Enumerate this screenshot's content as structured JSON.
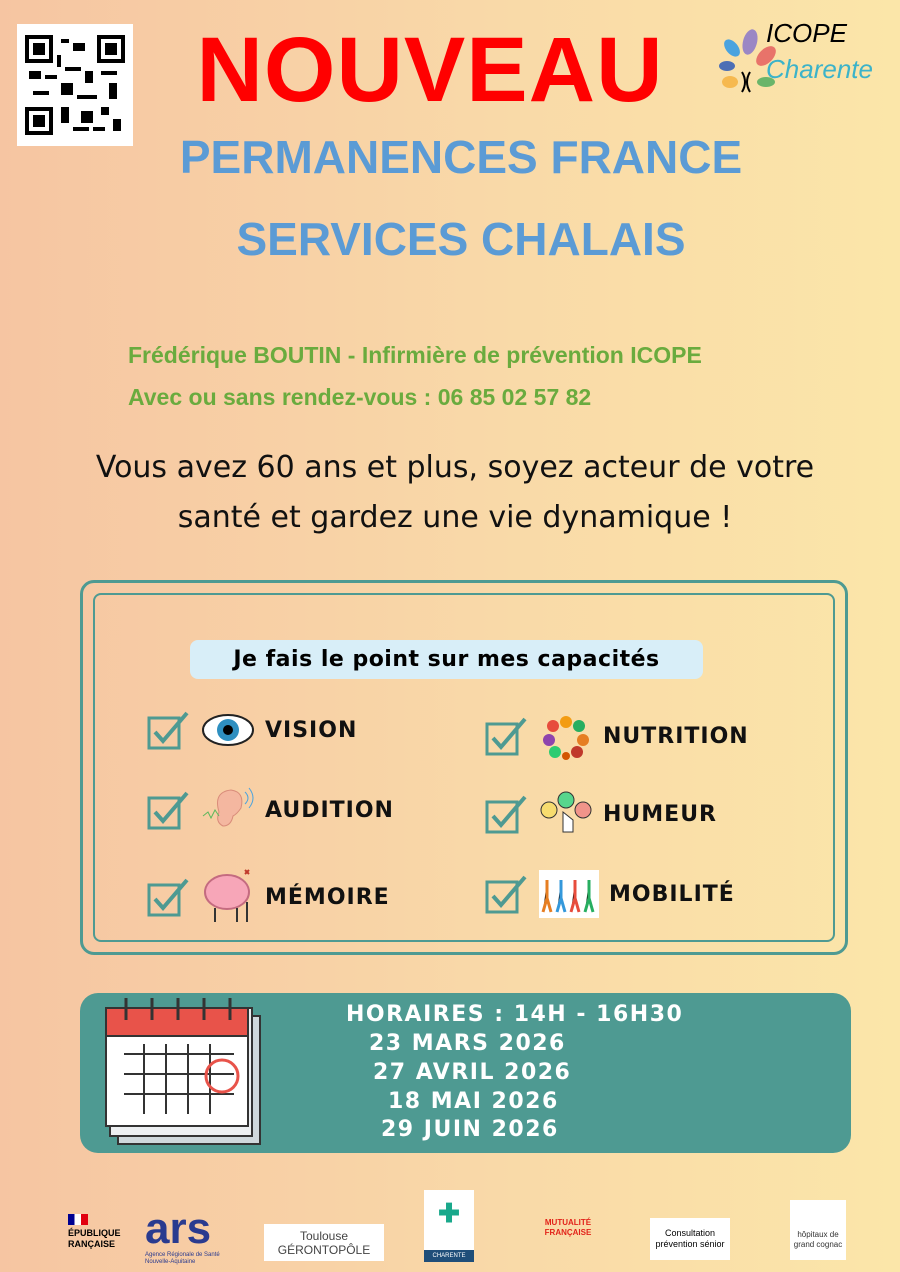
{
  "header": {
    "title": "NOUVEAU",
    "subtitle_line1": "PERMANENCES FRANCE",
    "subtitle_line2": "SERVICES CHALAIS",
    "logo": {
      "line1": "ICOPE",
      "line2": "Charente"
    },
    "qr_icon": "qr-code"
  },
  "contact": {
    "line1": "Frédérique BOUTIN - Infirmière de prévention ICOPE",
    "line2": "Avec ou sans rendez-vous : 06 85 02 57 82"
  },
  "intro": {
    "line1": "Vous avez 60 ans et plus, soyez acteur de votre",
    "line2": "santé et gardez une vie dynamique !"
  },
  "capacities": {
    "heading": "Je fais le point sur mes capacités",
    "items": [
      {
        "label": "VISION",
        "icon": "eye-icon"
      },
      {
        "label": "AUDITION",
        "icon": "ear-icon"
      },
      {
        "label": "MÉMOIRE",
        "icon": "brain-icon"
      },
      {
        "label": "NUTRITION",
        "icon": "food-icon"
      },
      {
        "label": "HUMEUR",
        "icon": "mood-icon"
      },
      {
        "label": "MOBILITÉ",
        "icon": "exercise-icon"
      }
    ]
  },
  "schedule": {
    "hours": "HORAIRES : 14H - 16H30",
    "dates": [
      "23 MARS 2026",
      "27 AVRIL 2026",
      "18 MAI 2026",
      "29 JUIN 2026"
    ]
  },
  "partners": {
    "rf": [
      "ÉPUBLIQUE",
      "RANÇAISE"
    ],
    "ars": "ars",
    "ars_sub": "Agence Régionale de Santé Nouvelle-Aquitaine",
    "gero": "Toulouse GÉRONTOPÔLE",
    "dac": "CHARENTE",
    "mutualite": "MUTUALITÉ FRANÇAISE",
    "consult": "Consultation prévention sénior",
    "hopitaux": "hôpitaux de grand cognac"
  },
  "colors": {
    "red": "#ff0000",
    "blue": "#5b9bd5",
    "green": "#6aab3e",
    "teal": "#4e9a92"
  }
}
